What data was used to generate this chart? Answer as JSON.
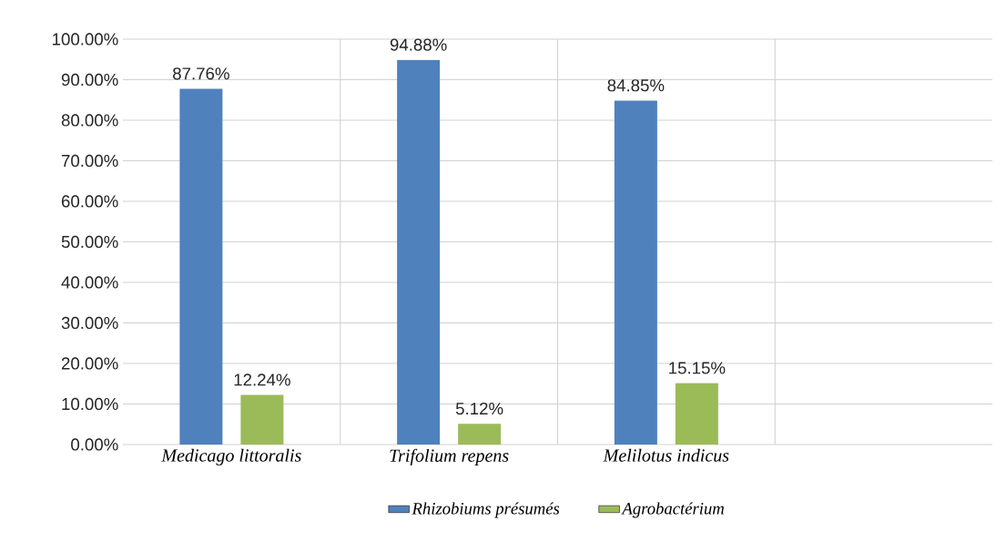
{
  "chart_data": {
    "type": "bar",
    "categories": [
      "Medicago littoralis",
      "Trifolium repens",
      "Melilotus indicus",
      null
    ],
    "series": [
      {
        "name": "Rhizobiums présumés",
        "color": "#4f81bd",
        "values": [
          87.76,
          94.88,
          84.85,
          null
        ],
        "value_labels": [
          "87.76%",
          "94.88%",
          "84.85%",
          null
        ]
      },
      {
        "name": "Agrobactérium",
        "color": "#9bbb59",
        "values": [
          12.24,
          5.12,
          15.15,
          null
        ],
        "value_labels": [
          "12.24%",
          "5.12%",
          "15.15%",
          null
        ]
      }
    ],
    "ylim": [
      0,
      100
    ],
    "yticks": [
      {
        "value": 0,
        "label": "0.00%"
      },
      {
        "value": 10,
        "label": "10.00%"
      },
      {
        "value": 20,
        "label": "20.00%"
      },
      {
        "value": 30,
        "label": "30.00%"
      },
      {
        "value": 40,
        "label": "40.00%"
      },
      {
        "value": 50,
        "label": "50.00%"
      },
      {
        "value": 60,
        "label": "60.00%"
      },
      {
        "value": 70,
        "label": "70.00%"
      },
      {
        "value": 80,
        "label": "80.00%"
      },
      {
        "value": 90,
        "label": "90.00%"
      },
      {
        "value": 100,
        "label": "100.00%"
      }
    ],
    "grid": true,
    "legend": "bottom"
  }
}
